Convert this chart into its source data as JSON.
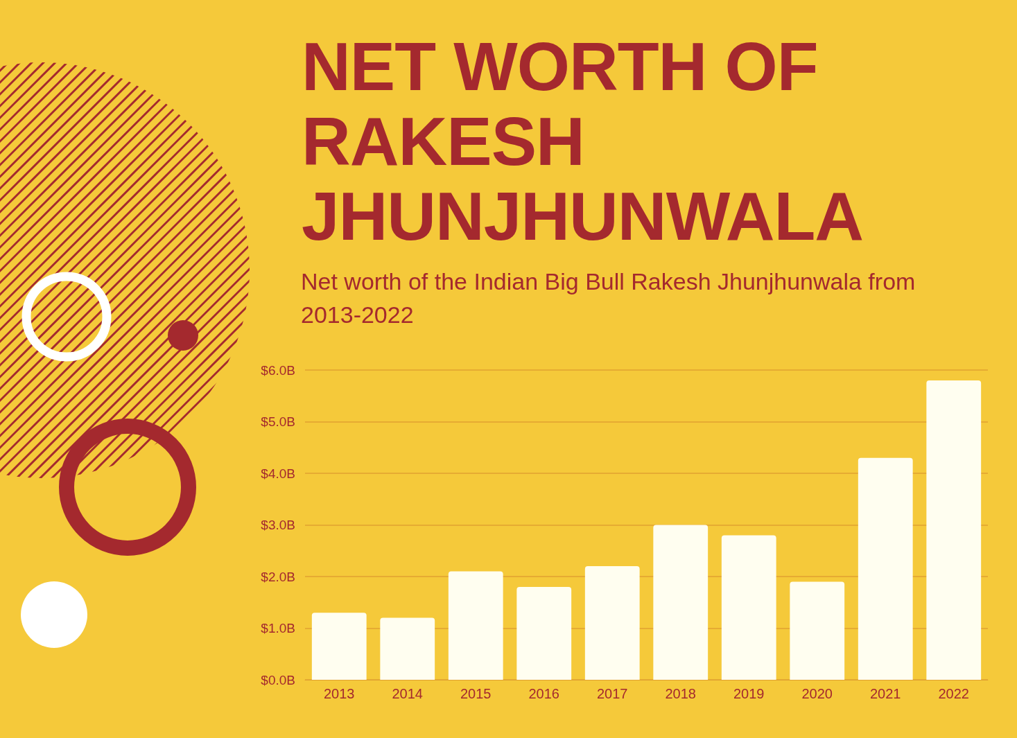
{
  "chart_data": {
    "type": "bar",
    "title": "NET WORTH OF RAKESH JHUNJHUNWALA",
    "subtitle": "Net worth of the Indian Big Bull Rakesh Jhunjhunwala from 2013-2022",
    "categories": [
      "2013",
      "2014",
      "2015",
      "2016",
      "2017",
      "2018",
      "2019",
      "2020",
      "2021",
      "2022"
    ],
    "values": [
      1.3,
      1.2,
      2.1,
      1.8,
      2.2,
      3.0,
      2.8,
      1.9,
      4.3,
      5.8
    ],
    "color": "#fffef0",
    "ylim": [
      0,
      6
    ],
    "yticks": [
      {
        "value": 0,
        "label": "$0.0B"
      },
      {
        "value": 1,
        "label": "$1.0B"
      },
      {
        "value": 2,
        "label": "$2.0B"
      },
      {
        "value": 3,
        "label": "$3.0B"
      },
      {
        "value": 4,
        "label": "$4.0B"
      },
      {
        "value": 5,
        "label": "$5.0B"
      },
      {
        "value": 6,
        "label": "$6.0B"
      }
    ],
    "grid": "y"
  }
}
